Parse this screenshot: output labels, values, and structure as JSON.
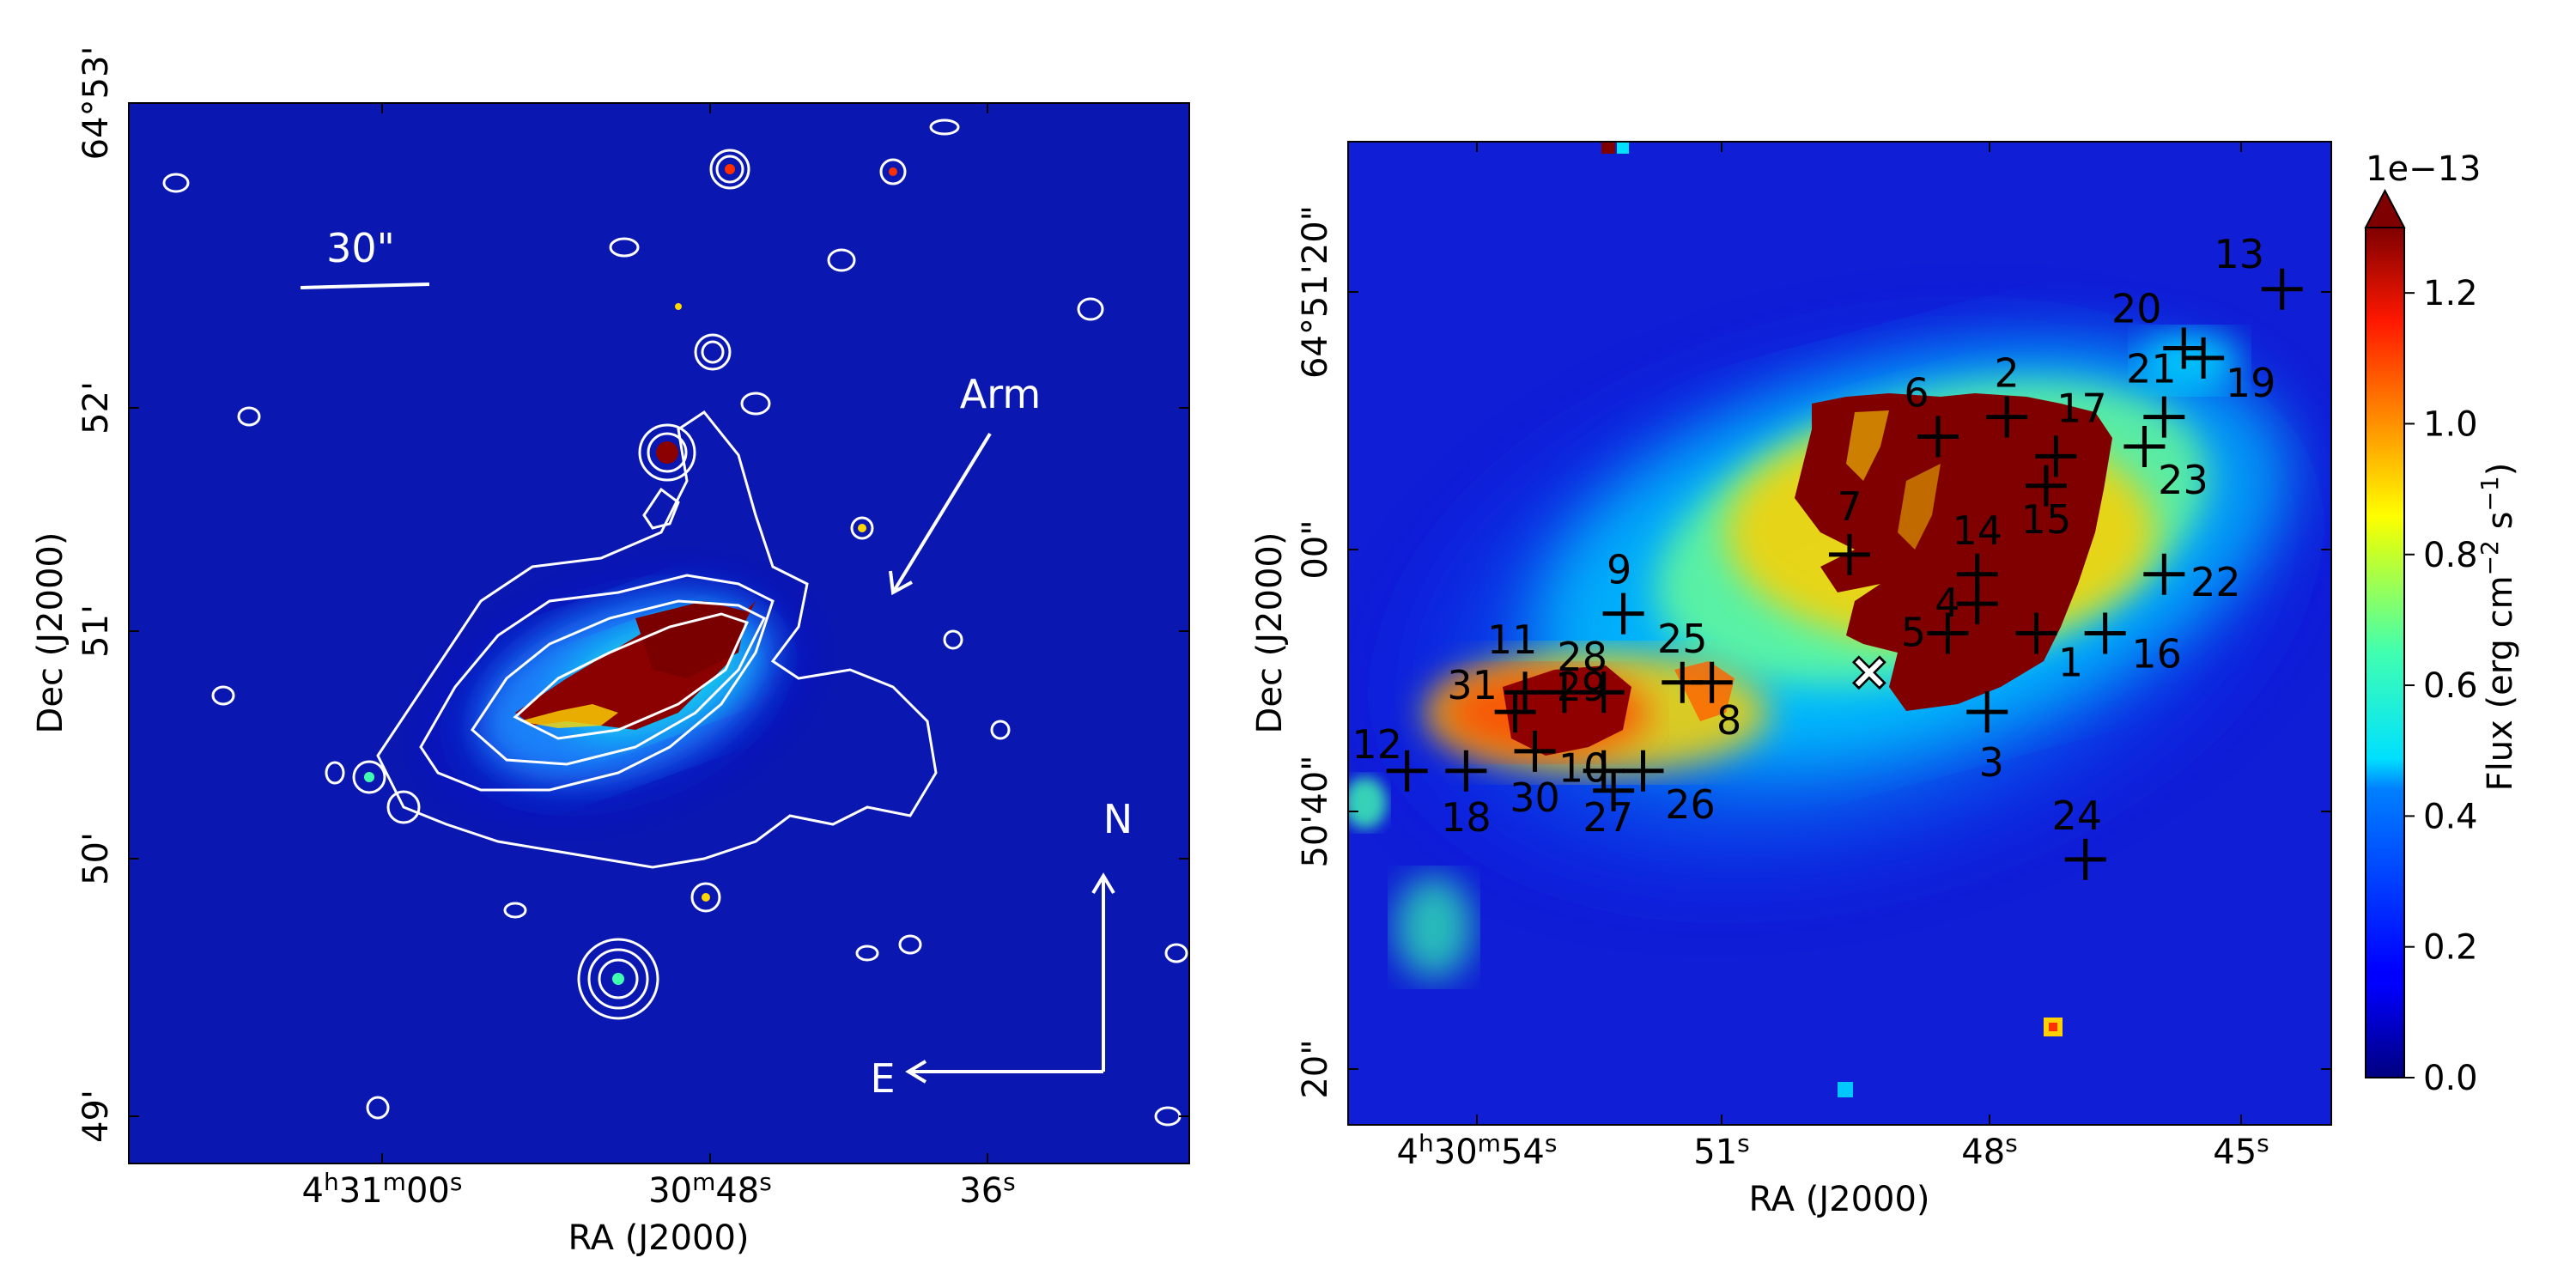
{
  "chart_data": [
    {
      "type": "heatmap",
      "panel": "left",
      "xlabel": "RA (J2000)",
      "ylabel": "Dec (J2000)",
      "x_ticks": [
        {
          "main": "4",
          "sup1": "h",
          "mid": "31",
          "sup2": "m",
          "end": "00",
          "sup3": "s"
        },
        {
          "main": "",
          "sup1": "",
          "mid": "30",
          "sup2": "m",
          "end": "48",
          "sup3": "s"
        },
        {
          "main": "",
          "sup1": "",
          "mid": "",
          "sup2": "",
          "end": "36",
          "sup3": "s"
        }
      ],
      "y_ticks": [
        "64°53'",
        "52'",
        "51'",
        "50'",
        "49'"
      ],
      "annotations": {
        "scale_bar": "30\"",
        "arm": "Arm",
        "north": "N",
        "east": "E"
      },
      "contours": "white"
    },
    {
      "type": "heatmap",
      "panel": "right",
      "xlabel": "RA (J2000)",
      "ylabel": "Dec (J2000)",
      "x_ticks": [
        {
          "main": "4",
          "sup1": "h",
          "mid": "30",
          "sup2": "m",
          "end": "54",
          "sup3": "s"
        },
        {
          "main": "",
          "sup1": "",
          "mid": "",
          "sup2": "",
          "end": "51",
          "sup3": "s"
        },
        {
          "main": "",
          "sup1": "",
          "mid": "",
          "sup2": "",
          "end": "48",
          "sup3": "s"
        },
        {
          "main": "",
          "sup1": "",
          "mid": "",
          "sup2": "",
          "end": "45",
          "sup3": "s"
        }
      ],
      "y_ticks": [
        "64°51'20\"",
        "00\"",
        "50'40\"",
        "20\""
      ],
      "colorbar": {
        "label": "Flux (erg cm",
        "label_sup": "−2",
        "label_end": " s",
        "label_sup2": "−1",
        "label_close": ")",
        "scale": "1e−13",
        "ticks": [
          "0.0",
          "0.2",
          "0.4",
          "0.6",
          "0.8",
          "1.0",
          "1.2"
        ],
        "range": [
          0,
          1.3
        ],
        "colormap": "jet",
        "extend": "max"
      },
      "sources": [
        {
          "id": "1",
          "x": 0.7,
          "y": 0.5
        },
        {
          "id": "2",
          "x": 0.67,
          "y": 0.28
        },
        {
          "id": "3",
          "x": 0.65,
          "y": 0.58
        },
        {
          "id": "4",
          "x": 0.64,
          "y": 0.47
        },
        {
          "id": "5",
          "x": 0.61,
          "y": 0.5
        },
        {
          "id": "6",
          "x": 0.6,
          "y": 0.3
        },
        {
          "id": "7",
          "x": 0.51,
          "y": 0.42
        },
        {
          "id": "8",
          "x": 0.37,
          "y": 0.55
        },
        {
          "id": "9",
          "x": 0.28,
          "y": 0.48
        },
        {
          "id": "10",
          "x": 0.27,
          "y": 0.66
        },
        {
          "id": "11",
          "x": 0.18,
          "y": 0.56
        },
        {
          "id": "12",
          "x": 0.06,
          "y": 0.64
        },
        {
          "id": "13",
          "x": 0.95,
          "y": 0.15
        },
        {
          "id": "14",
          "x": 0.64,
          "y": 0.44
        },
        {
          "id": "15",
          "x": 0.71,
          "y": 0.35
        },
        {
          "id": "16",
          "x": 0.77,
          "y": 0.5
        },
        {
          "id": "17",
          "x": 0.72,
          "y": 0.32
        },
        {
          "id": "18",
          "x": 0.12,
          "y": 0.64
        },
        {
          "id": "19",
          "x": 0.87,
          "y": 0.22
        },
        {
          "id": "20",
          "x": 0.85,
          "y": 0.21
        },
        {
          "id": "21",
          "x": 0.83,
          "y": 0.28
        },
        {
          "id": "22",
          "x": 0.83,
          "y": 0.44
        },
        {
          "id": "23",
          "x": 0.81,
          "y": 0.31
        },
        {
          "id": "24",
          "x": 0.75,
          "y": 0.73
        },
        {
          "id": "25",
          "x": 0.34,
          "y": 0.55
        },
        {
          "id": "26",
          "x": 0.3,
          "y": 0.64
        },
        {
          "id": "27",
          "x": 0.26,
          "y": 0.64
        },
        {
          "id": "28",
          "x": 0.26,
          "y": 0.56
        },
        {
          "id": "29",
          "x": 0.22,
          "y": 0.56
        },
        {
          "id": "30",
          "x": 0.19,
          "y": 0.62
        },
        {
          "id": "31",
          "x": 0.17,
          "y": 0.58
        }
      ],
      "nucleus_marker": {
        "symbol": "×",
        "x": 0.53,
        "y": 0.54
      }
    }
  ]
}
